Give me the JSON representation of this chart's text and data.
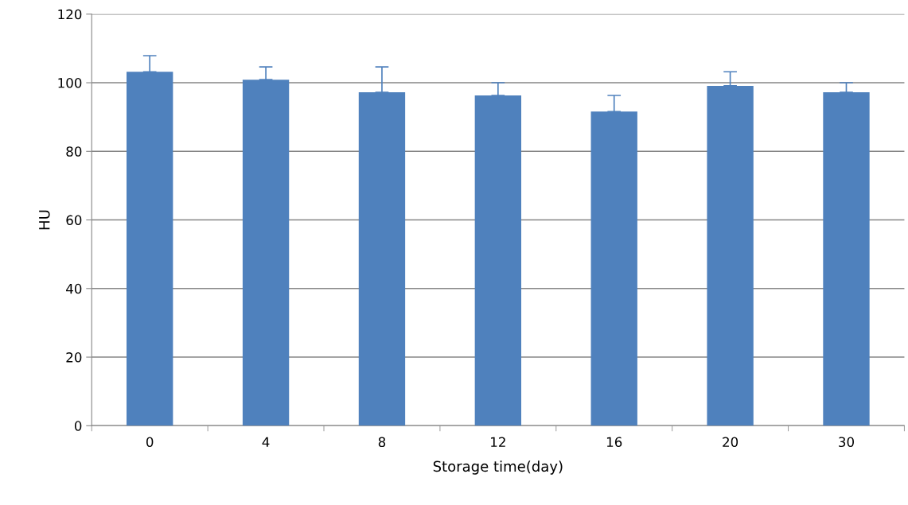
{
  "chart_data": {
    "type": "bar",
    "xlabel": "Storage time(day)",
    "ylabel": "HU",
    "categories": [
      "0",
      "4",
      "8",
      "12",
      "16",
      "20",
      "30"
    ],
    "values": [
      103.2,
      100.9,
      97.2,
      96.3,
      91.6,
      99.1,
      97.2
    ],
    "errors": [
      [
        103.2,
        107.9
      ],
      [
        100.9,
        104.6
      ],
      [
        97.2,
        104.6
      ],
      [
        96.3,
        100.0
      ],
      [
        91.6,
        96.3
      ],
      [
        99.1,
        103.2
      ],
      [
        97.2,
        100.0
      ]
    ],
    "color": "#4f81bd",
    "ylim": [
      0,
      120
    ],
    "yticks": [
      0,
      20,
      40,
      60,
      80,
      100,
      120
    ],
    "grid": "y"
  }
}
